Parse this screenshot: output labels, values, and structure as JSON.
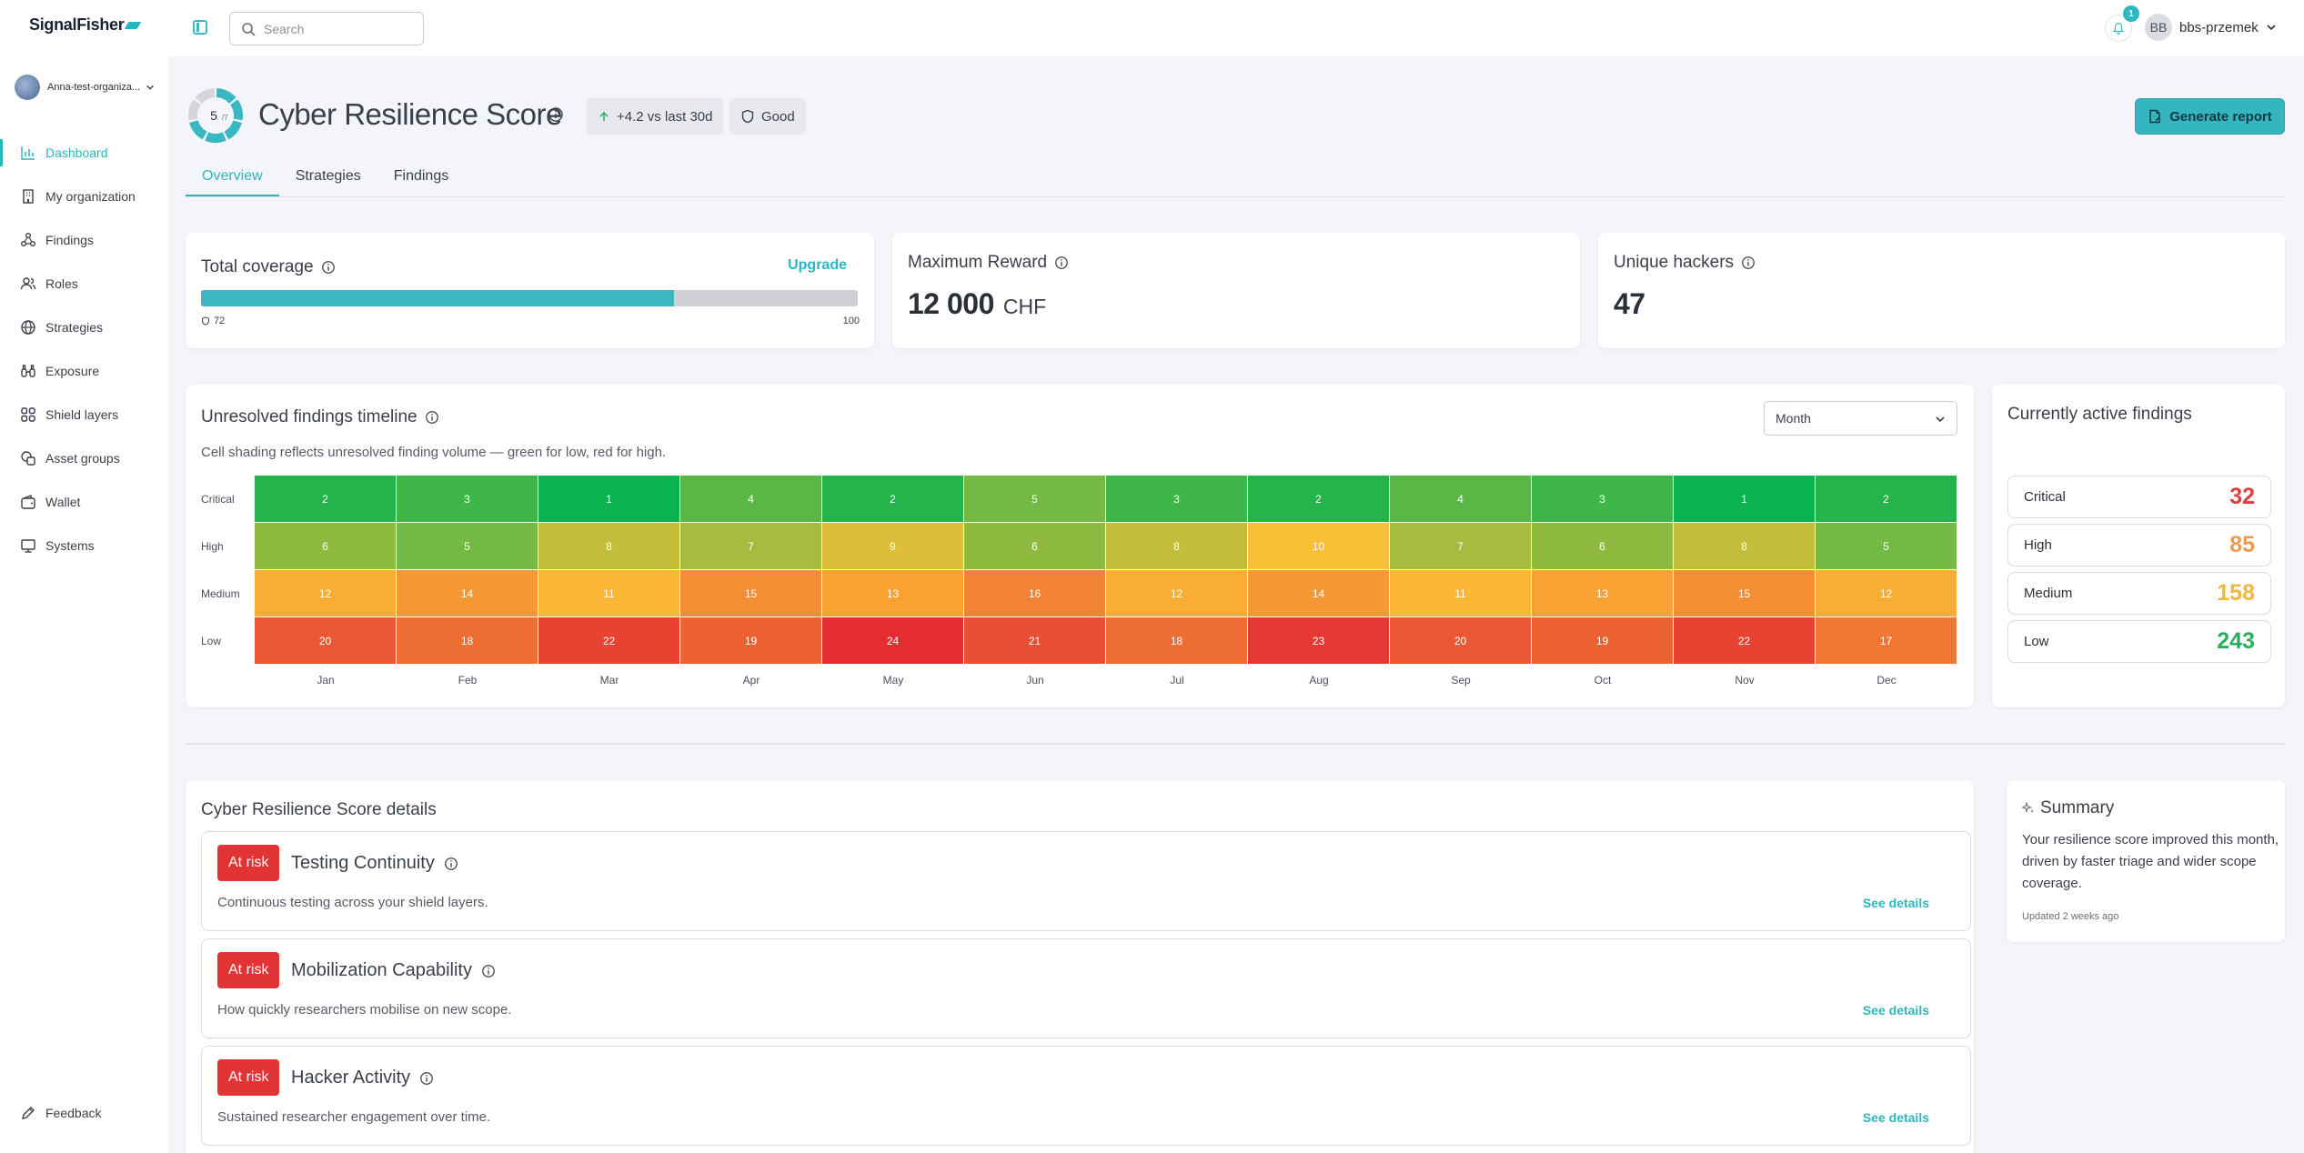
{
  "app": {
    "name": "SignalFisher",
    "search_placeholder": "Search",
    "notification_count": "1",
    "user_initials": "BB",
    "user_name": "bbs-przemek",
    "org_name": "Anna-test-organiza..."
  },
  "sidebar": {
    "items": [
      {
        "label": "Dashboard",
        "icon": "chart-icon",
        "active": true
      },
      {
        "label": "My organization",
        "icon": "building-icon"
      },
      {
        "label": "Findings",
        "icon": "findings-icon"
      },
      {
        "label": "Roles",
        "icon": "users-icon"
      },
      {
        "label": "Strategies",
        "icon": "globe-icon"
      },
      {
        "label": "Exposure",
        "icon": "binoculars-icon"
      },
      {
        "label": "Shield layers",
        "icon": "grid-icon"
      },
      {
        "label": "Asset groups",
        "icon": "asset-groups-icon"
      },
      {
        "label": "Wallet",
        "icon": "wallet-icon"
      },
      {
        "label": "Systems",
        "icon": "monitor-icon"
      }
    ],
    "feedback": "Feedback"
  },
  "header": {
    "score_label": "5",
    "score_suffix": "/7",
    "title": "Cyber Resilience Score",
    "trend": "+4.2 vs last 30d",
    "status": "Good",
    "generate_report": "Generate report"
  },
  "tabs": [
    "Overview",
    "Strategies",
    "Findings"
  ],
  "coverage": {
    "title": "Total coverage",
    "upgrade": "Upgrade",
    "value": 72,
    "max": 100,
    "value_label": "72",
    "max_label": "100"
  },
  "reward": {
    "title": "Maximum Reward",
    "value": "12 000",
    "unit": "CHF"
  },
  "hackers": {
    "title": "Unique hackers",
    "value": "47"
  },
  "timeline": {
    "title": "Unresolved findings timeline",
    "subtitle": "Cell shading reflects unresolved finding volume — green for low, red for high.",
    "period": "Month"
  },
  "chart_data": {
    "type": "heatmap",
    "x": [
      "Jan",
      "Feb",
      "Mar",
      "Apr",
      "May",
      "Jun",
      "Jul",
      "Aug",
      "Sep",
      "Oct",
      "Nov",
      "Dec"
    ],
    "y": [
      "Critical",
      "High",
      "Medium",
      "Low"
    ],
    "values": [
      [
        2,
        3,
        1,
        4,
        2,
        5,
        3,
        2,
        4,
        3,
        1,
        2
      ],
      [
        6,
        5,
        8,
        7,
        9,
        6,
        8,
        10,
        7,
        6,
        8,
        5
      ],
      [
        12,
        14,
        11,
        15,
        13,
        16,
        12,
        14,
        11,
        13,
        15,
        12
      ],
      [
        20,
        18,
        22,
        19,
        24,
        21,
        18,
        23,
        20,
        19,
        22,
        17
      ]
    ],
    "color_scale": {
      "low": "#0ab34e",
      "mid": "#fdc035",
      "high": "#e32d32"
    }
  },
  "active_findings": {
    "title": "Currently active findings",
    "items": [
      {
        "label": "Critical",
        "value": "32",
        "color": "#e23b3b"
      },
      {
        "label": "High",
        "value": "85",
        "color": "#f19a4a"
      },
      {
        "label": "Medium",
        "value": "158",
        "color": "#f4b63d"
      },
      {
        "label": "Low",
        "value": "243",
        "color": "#28b05c"
      }
    ]
  },
  "details": {
    "title": "Cyber Resilience Score details",
    "badge": "At risk",
    "see_details": "See details",
    "items": [
      {
        "name": "Testing Continuity",
        "desc": "Continuous testing across your shield layers."
      },
      {
        "name": "Mobilization Capability",
        "desc": "How quickly researchers mobilise on new scope."
      },
      {
        "name": "Hacker Activity",
        "desc": "Sustained researcher engagement over time."
      }
    ]
  },
  "summary": {
    "title": "Summary",
    "text": "Your resilience score improved this month, driven by faster triage and wider scope coverage.",
    "updated": "Updated 2 weeks ago"
  }
}
